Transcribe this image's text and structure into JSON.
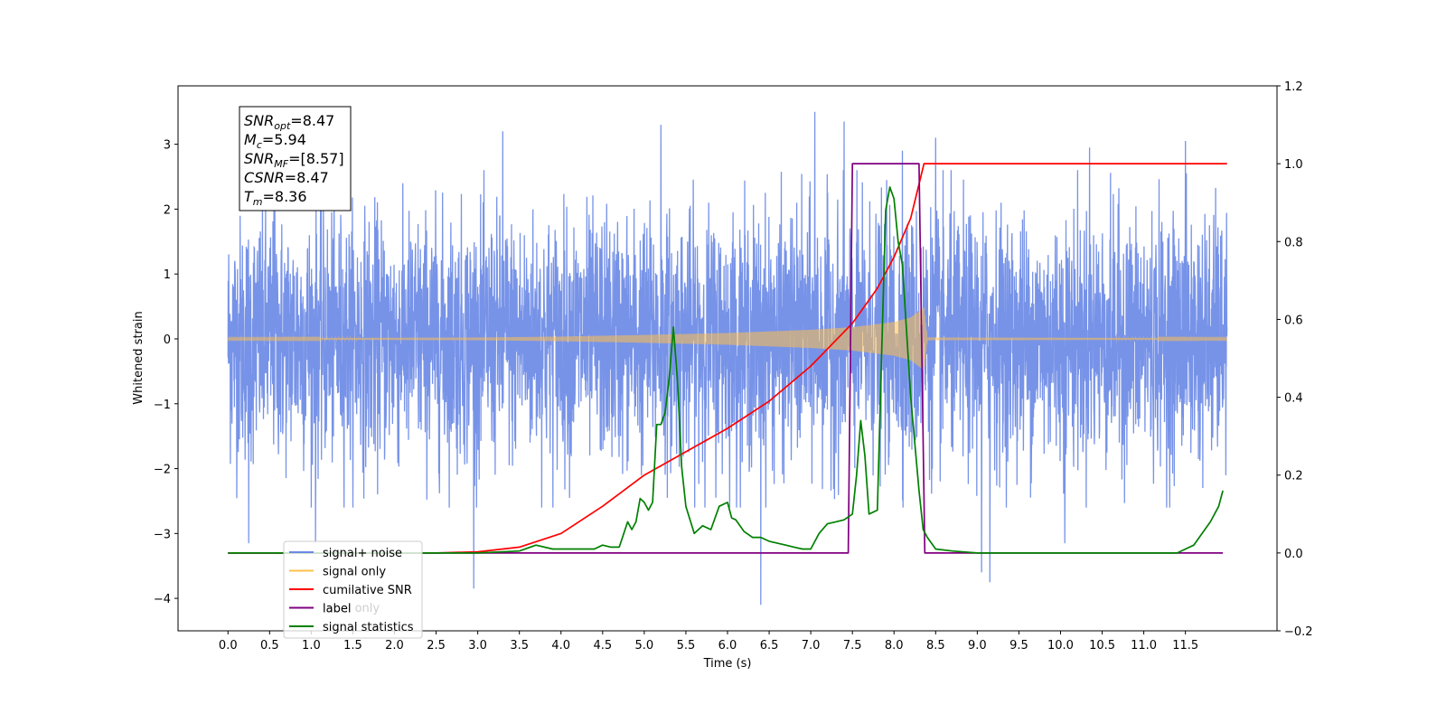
{
  "chart_data": {
    "type": "line",
    "xlabel": "Time (s)",
    "ylabel": "Whitened strain",
    "xlim": [
      -0.6,
      12.6
    ],
    "ylim_left": [
      -4.5,
      3.9
    ],
    "ylim_right": [
      -0.2,
      1.2
    ],
    "x_ticks": [
      "0.0",
      "0.5",
      "1.0",
      "1.5",
      "2.0",
      "2.5",
      "3.0",
      "3.5",
      "4.0",
      "4.5",
      "5.0",
      "5.5",
      "6.0",
      "6.5",
      "7.0",
      "7.5",
      "8.0",
      "8.5",
      "9.0",
      "9.5",
      "10.0",
      "10.5",
      "11.0",
      "11.5"
    ],
    "y_ticks_left": [
      "−4",
      "−3",
      "−2",
      "−1",
      "0",
      "1",
      "2",
      "3"
    ],
    "y_ticks_right": [
      "−0.2",
      "0.0",
      "0.2",
      "0.4",
      "0.6",
      "0.8",
      "1.0",
      "1.2"
    ],
    "annotation": [
      {
        "base": "SNR",
        "sub": "opt",
        "value": "=8.47"
      },
      {
        "base": "M",
        "sub": "c",
        "value": "=5.94"
      },
      {
        "base": "SNR",
        "sub": "MF",
        "value": "=[8.57]"
      },
      {
        "base": "CSNR",
        "sub": "",
        "value": "=8.47"
      },
      {
        "base": "T",
        "sub": "m",
        "value": "=8.36"
      }
    ],
    "legend": [
      {
        "label": "signal+ noise",
        "color": "#6b8ae6"
      },
      {
        "label": "signal only",
        "color": "#ffc04d"
      },
      {
        "label": "cumilative SNR",
        "color": "#ff0000"
      },
      {
        "label": "label",
        "color": "#800080"
      },
      {
        "label": "signal statistics",
        "color": "#008000"
      }
    ],
    "overlapping_text": "label only",
    "series": [
      {
        "name": "signal+ noise",
        "axis": "left",
        "color": "#6b8ae6",
        "x_range": [
          0.0,
          12.0
        ],
        "typical_amplitude": 1.3,
        "outliers": [
          [
            0.25,
            -3.15
          ],
          [
            0.55,
            2.05
          ],
          [
            1.05,
            -3.15
          ],
          [
            2.1,
            2.4
          ],
          [
            2.95,
            -3.85
          ],
          [
            3.3,
            3.2
          ],
          [
            5.2,
            3.3
          ],
          [
            6.4,
            -4.1
          ],
          [
            7.05,
            3.5
          ],
          [
            7.4,
            3.35
          ],
          [
            8.1,
            2.9
          ],
          [
            8.5,
            3.1
          ],
          [
            9.05,
            -3.6
          ],
          [
            9.15,
            -3.75
          ],
          [
            10.05,
            -3.15
          ],
          [
            10.35,
            2.95
          ],
          [
            11.5,
            3.05
          ]
        ]
      },
      {
        "name": "signal only",
        "axis": "left",
        "color": "#ffc04d",
        "envelope_x": [
          0.0,
          1.0,
          2.0,
          3.0,
          4.0,
          5.0,
          6.0,
          7.0,
          7.5,
          8.0,
          8.2,
          8.36,
          8.4,
          12.0
        ],
        "envelope_amplitude": [
          0.01,
          0.012,
          0.015,
          0.02,
          0.035,
          0.06,
          0.09,
          0.14,
          0.18,
          0.26,
          0.33,
          0.48,
          0.02,
          0.01
        ]
      },
      {
        "name": "cumilative SNR",
        "axis": "right",
        "color": "#ff0000",
        "x": [
          0.0,
          2.5,
          3.0,
          3.5,
          4.0,
          4.5,
          5.0,
          5.5,
          6.0,
          6.5,
          7.0,
          7.5,
          7.8,
          8.0,
          8.2,
          8.36,
          12.0
        ],
        "y": [
          0.0,
          0.0,
          0.003,
          0.015,
          0.05,
          0.12,
          0.2,
          0.26,
          0.32,
          0.39,
          0.48,
          0.59,
          0.68,
          0.76,
          0.86,
          1.0,
          1.0
        ]
      },
      {
        "name": "label",
        "axis": "right",
        "color": "#800080",
        "x": [
          0.0,
          7.45,
          7.5,
          8.3,
          8.37,
          11.95
        ],
        "y": [
          0.0,
          0.0,
          1.0,
          1.0,
          0.0,
          0.0
        ]
      },
      {
        "name": "signal statistics",
        "axis": "right",
        "color": "#008000",
        "x": [
          0.0,
          3.0,
          3.5,
          3.7,
          3.9,
          4.2,
          4.4,
          4.5,
          4.6,
          4.7,
          4.8,
          4.85,
          4.9,
          4.95,
          5.0,
          5.05,
          5.1,
          5.15,
          5.2,
          5.25,
          5.3,
          5.35,
          5.4,
          5.45,
          5.5,
          5.6,
          5.7,
          5.8,
          5.9,
          6.0,
          6.05,
          6.1,
          6.2,
          6.3,
          6.4,
          6.5,
          6.6,
          6.7,
          6.8,
          6.9,
          7.0,
          7.1,
          7.2,
          7.3,
          7.4,
          7.5,
          7.55,
          7.6,
          7.65,
          7.7,
          7.8,
          7.85,
          7.9,
          7.95,
          8.0,
          8.05,
          8.1,
          8.2,
          8.3,
          8.35,
          8.4,
          8.5,
          8.7,
          9.0,
          11.4,
          11.5,
          11.6,
          11.7,
          11.8,
          11.9,
          11.95
        ],
        "y": [
          0.0,
          0.0,
          0.005,
          0.02,
          0.01,
          0.01,
          0.01,
          0.02,
          0.015,
          0.015,
          0.08,
          0.06,
          0.08,
          0.14,
          0.13,
          0.11,
          0.13,
          0.33,
          0.33,
          0.36,
          0.45,
          0.58,
          0.44,
          0.22,
          0.12,
          0.05,
          0.07,
          0.06,
          0.12,
          0.13,
          0.09,
          0.085,
          0.055,
          0.04,
          0.04,
          0.03,
          0.025,
          0.02,
          0.015,
          0.01,
          0.01,
          0.05,
          0.075,
          0.08,
          0.085,
          0.1,
          0.2,
          0.34,
          0.25,
          0.1,
          0.11,
          0.5,
          0.88,
          0.94,
          0.91,
          0.8,
          0.74,
          0.4,
          0.16,
          0.06,
          0.04,
          0.01,
          0.005,
          0.0,
          0.0,
          0.01,
          0.02,
          0.05,
          0.08,
          0.12,
          0.16
        ]
      }
    ]
  }
}
